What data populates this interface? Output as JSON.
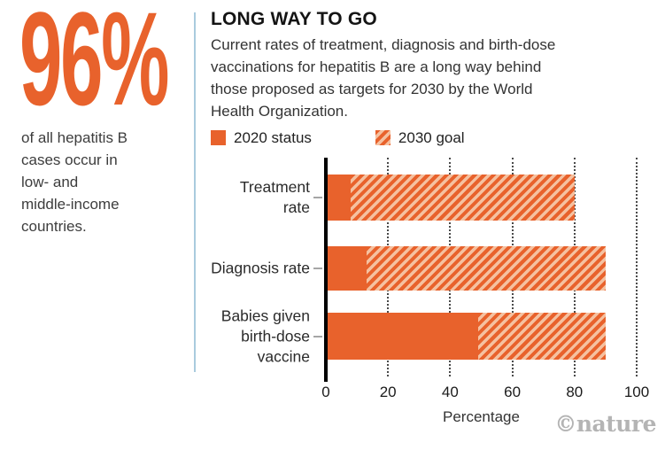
{
  "stat_panel": {
    "value": "96%",
    "description": "of all hepatitis B\ncases occur in\nlow- and\nmiddle-income\ncountries."
  },
  "header": {
    "title": "LONG WAY TO GO",
    "description": "Current rates of treatment, diagnosis and birth-dose\nvaccinations for hepatitis B are a long way behind\nthose proposed as targets for 2030 by the World\nHealth Organization."
  },
  "legend": {
    "items": [
      {
        "label": "2020 status",
        "swatch": "solid"
      },
      {
        "label": "2030 goal",
        "swatch": "hatched"
      }
    ]
  },
  "chart_data": {
    "type": "bar",
    "orientation": "horizontal",
    "categories": [
      "Treatment rate",
      "Diagnosis rate",
      "Babies given birth-dose vaccine"
    ],
    "series": [
      {
        "name": "2020 status",
        "style": "solid",
        "values": [
          8,
          13,
          49
        ]
      },
      {
        "name": "2030 goal",
        "style": "hatched",
        "values": [
          80,
          90,
          90
        ]
      }
    ],
    "xlabel": "Percentage",
    "xlim": [
      0,
      100
    ],
    "xticks": [
      0,
      20,
      40,
      60,
      80,
      100
    ],
    "grid": "dotted-vertical",
    "legend_position": "top"
  },
  "watermark": "©nature",
  "colors": {
    "accent_orange": "#E8622C",
    "hatch_light": "#F5C1A0",
    "divider_blue": "#A9CBDE",
    "axis_black": "#000000",
    "watermark_gray": "#B4B4B4"
  }
}
